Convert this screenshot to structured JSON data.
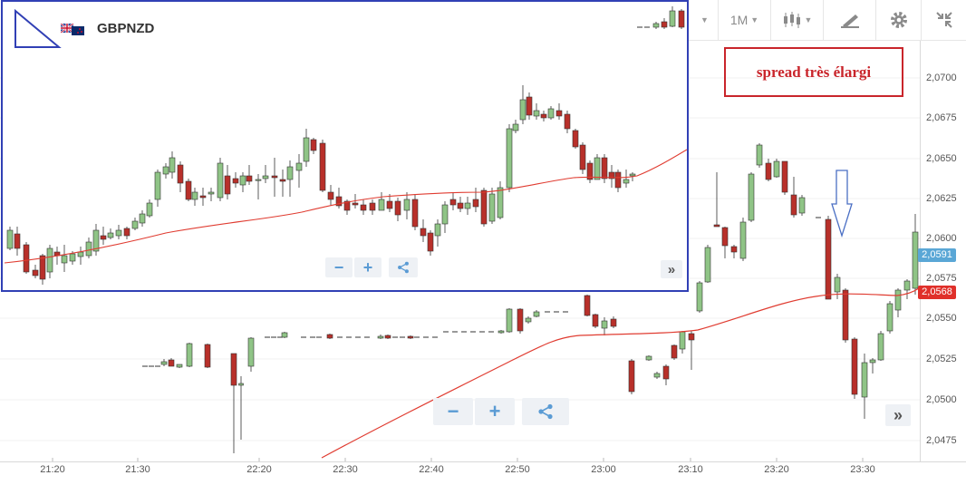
{
  "toolbar": {
    "timeframe_label": "1M",
    "items": [
      "timeframe",
      "chart-type",
      "drawing-tools",
      "settings",
      "fullscreen"
    ]
  },
  "symbol": "GBPNZD",
  "annotation": "spread très élargi",
  "price_badges": {
    "current_bid": "2,0591",
    "ma_value": "2,0568"
  },
  "colors": {
    "bull": "#8fc486",
    "bear": "#b8302a",
    "ma": "#e03c31",
    "annotation": "#c9252b",
    "inset_border": "#3140b5",
    "badge_blue": "#5aa7d6",
    "badge_red": "#e0302a"
  },
  "icons": {
    "zoom_out": "−",
    "zoom_in": "+",
    "share": "share-icon",
    "scroll_right": "»"
  },
  "chart_data": {
    "main": {
      "type": "candlestick",
      "y_ticks": [
        "2,0700",
        "2,0675",
        "2,0650",
        "2,0625",
        "2,0600",
        "2,0575",
        "2,0550",
        "2,0525",
        "2,0500",
        "2,0475"
      ],
      "x_ticks": [
        "21:20",
        "21:30",
        "22:20",
        "22:30",
        "22:40",
        "22:50",
        "23:00",
        "23:10",
        "23:20",
        "23:30"
      ],
      "ylim": [
        2.0465,
        2.072
      ]
    },
    "inset": {
      "type": "candlestick",
      "symbol": "GBPNZD"
    }
  }
}
